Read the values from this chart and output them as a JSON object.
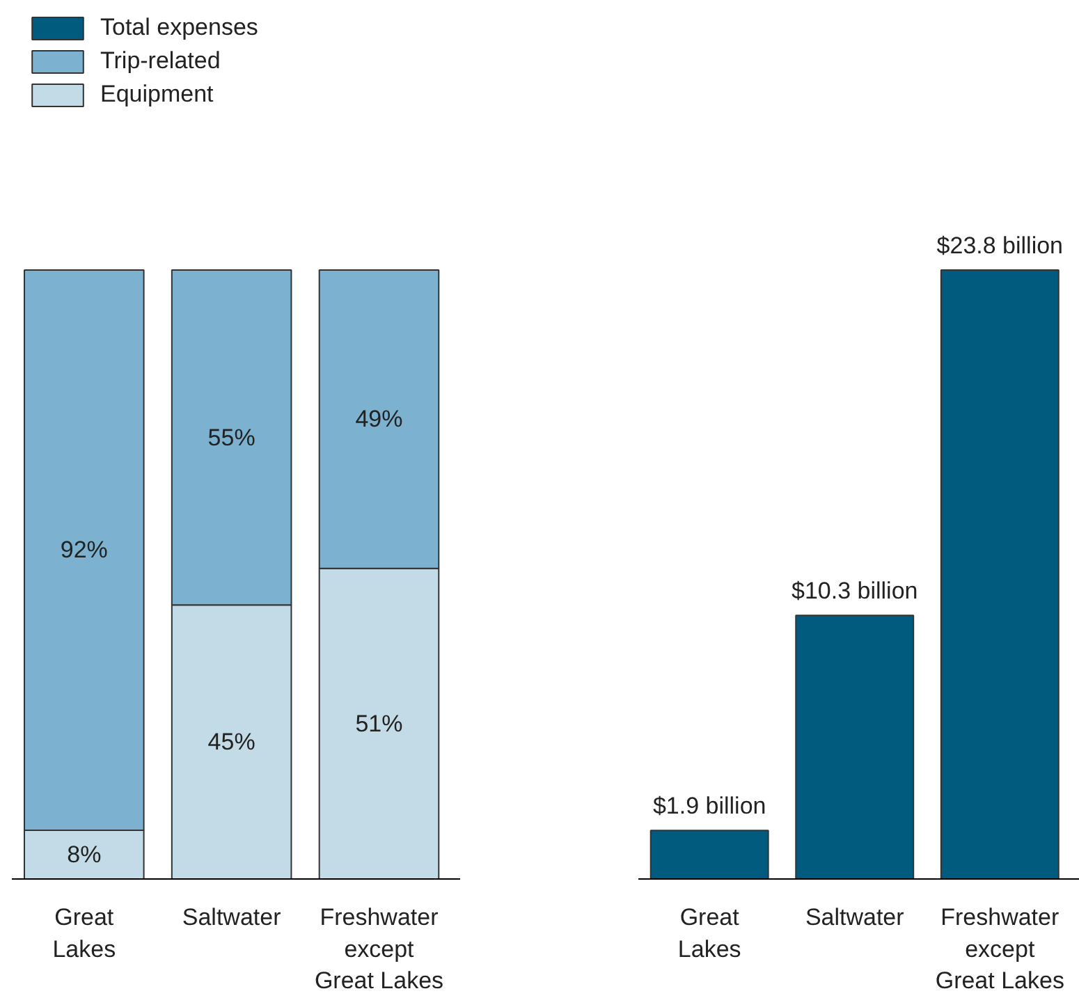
{
  "chart_data": [
    {
      "type": "bar",
      "stacked": true,
      "categories": [
        "Great\nLakes",
        "Saltwater",
        "Freshwater\nexcept\nGreat Lakes"
      ],
      "series": [
        {
          "name": "Equipment",
          "color": "#c3dbe7",
          "values": [
            8,
            45,
            51
          ],
          "value_labels": [
            "8%",
            "45%",
            "51%"
          ]
        },
        {
          "name": "Trip-related",
          "color": "#7cb2cf",
          "values": [
            92,
            55,
            49
          ],
          "value_labels": [
            "92%",
            "55%",
            "49%"
          ]
        }
      ],
      "tick_labels": "x",
      "legend": "top left"
    },
    {
      "type": "bar",
      "categories": [
        "Great\nLakes",
        "Saltwater",
        "Freshwater\nexcept\nGreat Lakes"
      ],
      "series": [
        {
          "name": "Total expenses",
          "color": "#005b7f",
          "values": [
            1.9,
            10.3,
            23.8
          ],
          "value_labels": [
            "$1.9 billion",
            "$10.3 billion",
            "$23.8 billion"
          ]
        }
      ],
      "tick_labels": "x"
    }
  ]
}
